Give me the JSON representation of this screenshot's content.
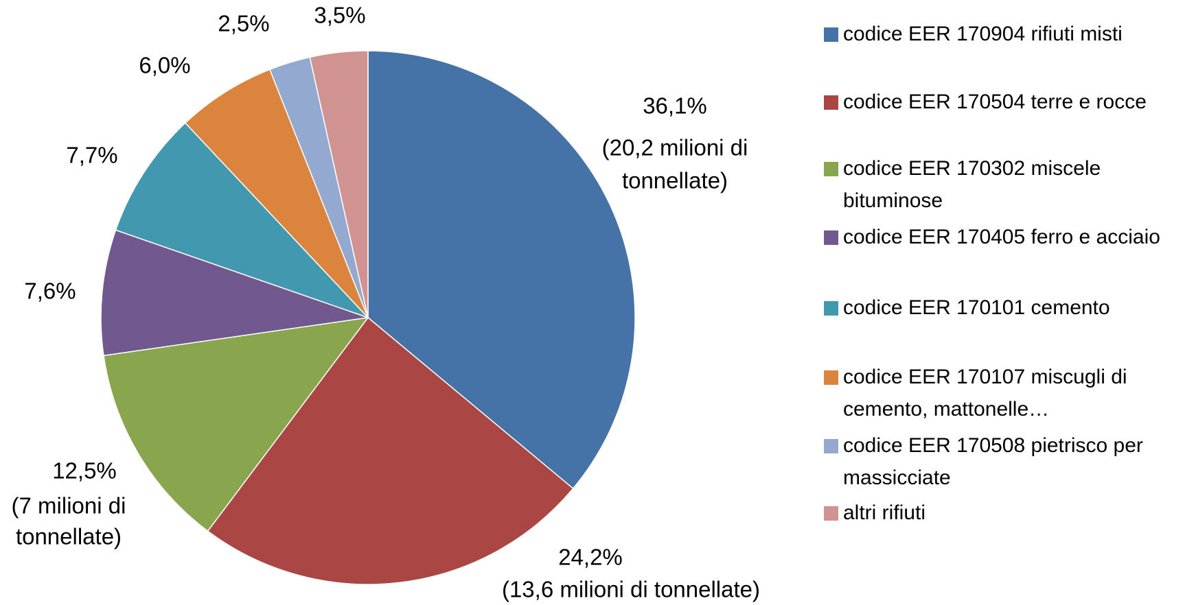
{
  "chart_data": {
    "type": "pie",
    "categories": [
      "codice EER 170904 rifiuti misti",
      "codice EER 170504 terre e rocce",
      "codice EER 170302 miscele bituminose",
      "codice EER 170405 ferro e acciaio",
      "codice EER 170101 cemento",
      "codice EER 170107 miscugli di cemento, mattonelle…",
      "codice EER 170508 pietrisco per massicciate",
      "altri rifiuti"
    ],
    "values": [
      36.1,
      24.2,
      12.5,
      7.6,
      7.7,
      6.0,
      2.5,
      3.5
    ],
    "value_labels": [
      "36,1%",
      "24,2%",
      "12,5%",
      "7,6%",
      "7,7%",
      "6,0%",
      "2,5%",
      "3,5%"
    ],
    "annotations": [
      [
        "(20,2 milioni di",
        "tonnellate)"
      ],
      [
        "(13,6 milioni di tonnellate)"
      ],
      [
        "(7 milioni di",
        "tonnellate)"
      ],
      null,
      null,
      null,
      null,
      null
    ],
    "colors": [
      "#4572a7",
      "#aa4643",
      "#89a54e",
      "#71588f",
      "#4198af",
      "#db843d",
      "#93a9cf",
      "#d19392"
    ],
    "legend": "right"
  }
}
